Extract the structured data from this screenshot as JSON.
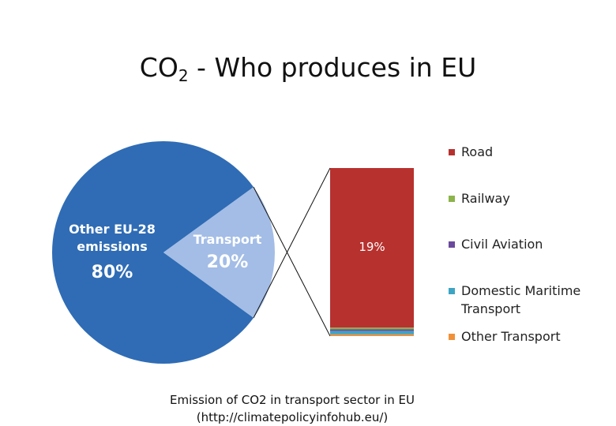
{
  "chart_data": {
    "type": "pie-of-bar",
    "title": {
      "main": "CO",
      "subscript": "2",
      "rest": "- Who produces in EU"
    },
    "pie": {
      "categories": [
        "Other EU-28 emissions",
        "Transport"
      ],
      "values": [
        80,
        20
      ],
      "value_labels": [
        "80%",
        "20%"
      ],
      "colors": [
        "#2f6cb5",
        "#a3bde6"
      ]
    },
    "bar": {
      "series": [
        {
          "name": "Road",
          "color": "#b7312e",
          "values": [
            19
          ],
          "value_labels": [
            "19%"
          ]
        },
        {
          "name": "Railway",
          "color": "#8cb44a",
          "values": [
            0.2
          ]
        },
        {
          "name": "Civil Aviation",
          "color": "#6a4a9c",
          "values": [
            0.2
          ]
        },
        {
          "name": "Domestic Maritime Transport",
          "color": "#3ea4c4",
          "values": [
            0.4
          ]
        },
        {
          "name": "Other Transport",
          "color": "#f0913a",
          "values": [
            0.2
          ]
        }
      ]
    }
  },
  "caption": [
    "Emission of CO2 in transport sector in EU",
    "(http://climatepolicyinfohub.eu/)"
  ]
}
